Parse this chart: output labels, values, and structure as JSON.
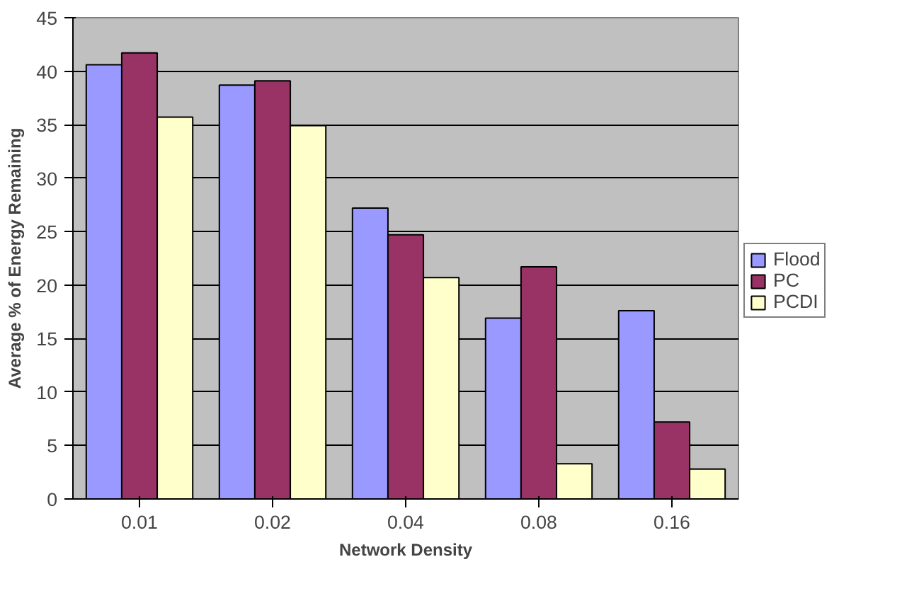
{
  "chart_data": {
    "type": "bar",
    "xlabel": "Network Density",
    "ylabel": "Average % of Energy Remaining",
    "categories": [
      "0.01",
      "0.02",
      "0.04",
      "0.08",
      "0.16"
    ],
    "series": [
      {
        "name": "Flood",
        "color": "#9999ff",
        "values": [
          40.6,
          38.7,
          27.2,
          16.9,
          17.6
        ]
      },
      {
        "name": "PC",
        "color": "#993366",
        "values": [
          41.7,
          39.1,
          24.7,
          21.7,
          7.2
        ]
      },
      {
        "name": "PCDI",
        "color": "#ffffcc",
        "values": [
          35.7,
          34.9,
          20.7,
          3.3,
          2.8
        ]
      }
    ],
    "ylim": [
      0,
      45
    ],
    "yticks": [
      0,
      5,
      10,
      15,
      20,
      25,
      30,
      35,
      40,
      45
    ],
    "grid": "y",
    "legend": "right"
  }
}
